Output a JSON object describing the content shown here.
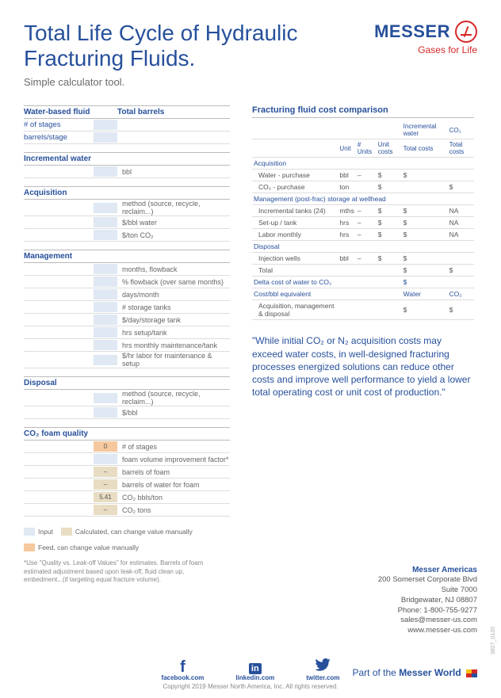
{
  "logo": {
    "name": "MESSER",
    "tagline": "Gases for Life"
  },
  "title": "Total Life Cycle of Hydraulic Fracturing Fluids.",
  "subtitle": "Simple calculator tool.",
  "left": {
    "waterFluid": {
      "head": "Water-based fluid",
      "totalBarrels": "Total barrels",
      "rows": [
        "# of stages",
        "barrels/stage"
      ]
    },
    "incrementalWater": {
      "head": "Incremental water",
      "unit": "bbl"
    },
    "acquisition": {
      "head": "Acquisition",
      "rows": [
        "method (source, recycle, reclaim...)",
        "$/bbl water",
        "$/ton CO₂"
      ]
    },
    "management": {
      "head": "Management",
      "rows": [
        "months, flowback",
        "% flowback (over same months)",
        "days/month",
        "# storage tanks",
        "$/day/storage tank",
        "hrs setup/tank",
        "hrs monthly maintenance/tank",
        "$/hr labor for maintenance & setup"
      ]
    },
    "disposal": {
      "head": "Disposal",
      "rows": [
        "method (source, recycle, reclaim...)",
        "$/bbl"
      ]
    },
    "co2": {
      "head": "CO₂ foam quality",
      "items": [
        {
          "box": "orange",
          "val": "0",
          "desc": "# of stages"
        },
        {
          "box": "blue",
          "val": "",
          "desc": "foam volume improvement factor*"
        },
        {
          "box": "tan",
          "val": "–",
          "desc": "barrels of foam"
        },
        {
          "box": "tan",
          "val": "–",
          "desc": "barrels of water for foam"
        },
        {
          "box": "tan",
          "val": "5.41",
          "desc": "CO₂ bbls/ton"
        },
        {
          "box": "tan",
          "val": "–",
          "desc": "CO₂ tons"
        }
      ]
    }
  },
  "legend": {
    "input": "Input",
    "calc": "Calculated, can change value manually",
    "feed": "Feed, can change value manually"
  },
  "footnote": "*Use \"Quality vs. Leak-off Values\" for estimates. Barrels of foam estimated adjustment based upon leak-off, fluid clean up, embedment...(if targeting equal fracture volume).",
  "right": {
    "title": "Fracturing fluid cost comparison",
    "topHead": [
      "",
      "",
      "",
      "",
      "Incremental water",
      "CO₂"
    ],
    "subHead": [
      "",
      "Unit",
      "# Units",
      "Unit costs",
      "Total costs",
      "Total costs"
    ],
    "groups": [
      {
        "name": "Acquisition",
        "rows": [
          [
            "Water - purchase",
            "bbl",
            "–",
            "$",
            "$",
            ""
          ],
          [
            "CO₂ - purchase",
            "ton",
            "",
            "$",
            "",
            "$"
          ]
        ]
      },
      {
        "name": "Management (post-frac) storage at wellhead",
        "rows": [
          [
            "Incremental tanks (24)",
            "mths",
            "–",
            "$",
            "$",
            "NA"
          ],
          [
            "Set-up / tank",
            "hrs",
            "–",
            "$",
            "$",
            "NA"
          ],
          [
            "Labor monthly",
            "hrs",
            "–",
            "$",
            "$",
            "NA"
          ]
        ]
      },
      {
        "name": "Disposal",
        "rows": [
          [
            "Injection wells",
            "bbl",
            "–",
            "$",
            "$",
            ""
          ],
          [
            "Total",
            "",
            "",
            "",
            "$",
            "$"
          ]
        ]
      },
      {
        "name": "Delta cost of water to CO₂",
        "plain": true,
        "rows": [
          [
            "",
            "",
            "",
            "",
            "$",
            ""
          ]
        ]
      },
      {
        "name": "Cost/bbl equivalent",
        "plain": true,
        "rows": [
          [
            "",
            "",
            "",
            "",
            "Water",
            "CO₂"
          ],
          [
            "Acquisition, management & disposal",
            "",
            "",
            "",
            "$",
            "$"
          ]
        ]
      }
    ]
  },
  "quote": "\"While initial CO₂ or N₂ acquisition costs may exceed water costs, in well-designed fracturing processes energized solutions can reduce other costs and improve well performance to yield a lower total operating cost or unit cost of production.\"",
  "contact": {
    "company": "Messer Americas",
    "lines": [
      "200 Somerset Corporate Blvd",
      "Suite 7000",
      "Bridgewater, NJ 08807",
      "Phone: 1-800-755-9277",
      "sales@messer-us.com",
      "www.messer-us.com"
    ]
  },
  "social": [
    {
      "icon": "f",
      "label": "facebook.com"
    },
    {
      "icon": "in",
      "label": "linkedin.com"
    },
    {
      "icon": "t",
      "label": "twitter.com"
    }
  ],
  "partof": {
    "prefix": "Part of the ",
    "bold": "Messer World"
  },
  "copyright": "Copyright 2019 Messer North America, Inc. All rights reserved.",
  "sidecode": "3827_0120"
}
